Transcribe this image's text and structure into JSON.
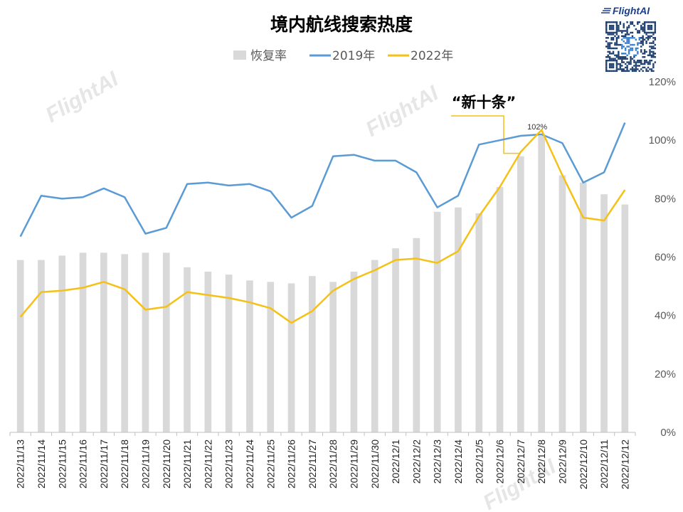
{
  "brand": {
    "logo": "FlightAI",
    "watermark": "FlightAI",
    "qr_icon": "qr-code-icon"
  },
  "colors": {
    "bar": "#d9d9d9",
    "line_2019": "#5b9bd5",
    "line_2022": "#f5c116"
  },
  "chart_data": {
    "type": "bar",
    "title": "境内航线搜索热度",
    "legend": {
      "position": "top",
      "entries": [
        "恢复率",
        "2019年",
        "2022年"
      ]
    },
    "categories": [
      "2022/11/13",
      "2022/11/14",
      "2022/11/15",
      "2022/11/16",
      "2022/11/17",
      "2022/11/18",
      "2022/11/19",
      "2022/11/20",
      "2022/11/21",
      "2022/11/22",
      "2022/11/23",
      "2022/11/24",
      "2022/11/25",
      "2022/11/26",
      "2022/11/27",
      "2022/11/28",
      "2022/11/29",
      "2022/11/30",
      "2022/12/1",
      "2022/12/2",
      "2022/12/3",
      "2022/12/4",
      "2022/12/5",
      "2022/12/6",
      "2022/12/7",
      "2022/12/8",
      "2022/12/9",
      "2022/12/10",
      "2022/12/11",
      "2022/12/12"
    ],
    "y_axis": {
      "min": 0,
      "max": 120,
      "ticks": [
        "0%",
        "20%",
        "40%",
        "60%",
        "80%",
        "100%",
        "120%"
      ],
      "position": "right"
    },
    "grid": false,
    "series": [
      {
        "name": "恢复率",
        "type": "bar",
        "values": [
          59,
          59,
          60.5,
          61.5,
          61.5,
          61,
          61.5,
          61.5,
          56.5,
          55,
          54,
          52,
          51.5,
          51,
          53.5,
          51.5,
          55,
          59,
          63,
          66.5,
          75.5,
          77,
          75,
          84,
          94.5,
          101.5,
          88,
          85.5,
          81.5,
          78
        ]
      },
      {
        "name": "2019年",
        "type": "line",
        "values": [
          67,
          81,
          80,
          80.5,
          83.5,
          80.5,
          68,
          70,
          85,
          85.5,
          84.5,
          85,
          82.5,
          73.5,
          77.5,
          94.5,
          95,
          93,
          93,
          89,
          77,
          81,
          98.5,
          100,
          101.5,
          102,
          99,
          85.5,
          89,
          106
        ]
      },
      {
        "name": "2022年",
        "type": "line",
        "values": [
          39.5,
          48,
          48.5,
          49.5,
          51.5,
          49,
          42,
          43,
          48,
          47,
          46,
          44.5,
          42.5,
          37.5,
          41.5,
          48.5,
          52.5,
          55.5,
          59,
          59.5,
          58,
          62,
          74,
          84,
          96,
          103.5,
          88,
          73.5,
          72.5,
          83
        ]
      }
    ],
    "annotations": [
      {
        "text": "“新十条”",
        "category": "2022/12/7"
      },
      {
        "text": "102%",
        "category": "2022/12/8",
        "series": "2019年"
      }
    ]
  }
}
